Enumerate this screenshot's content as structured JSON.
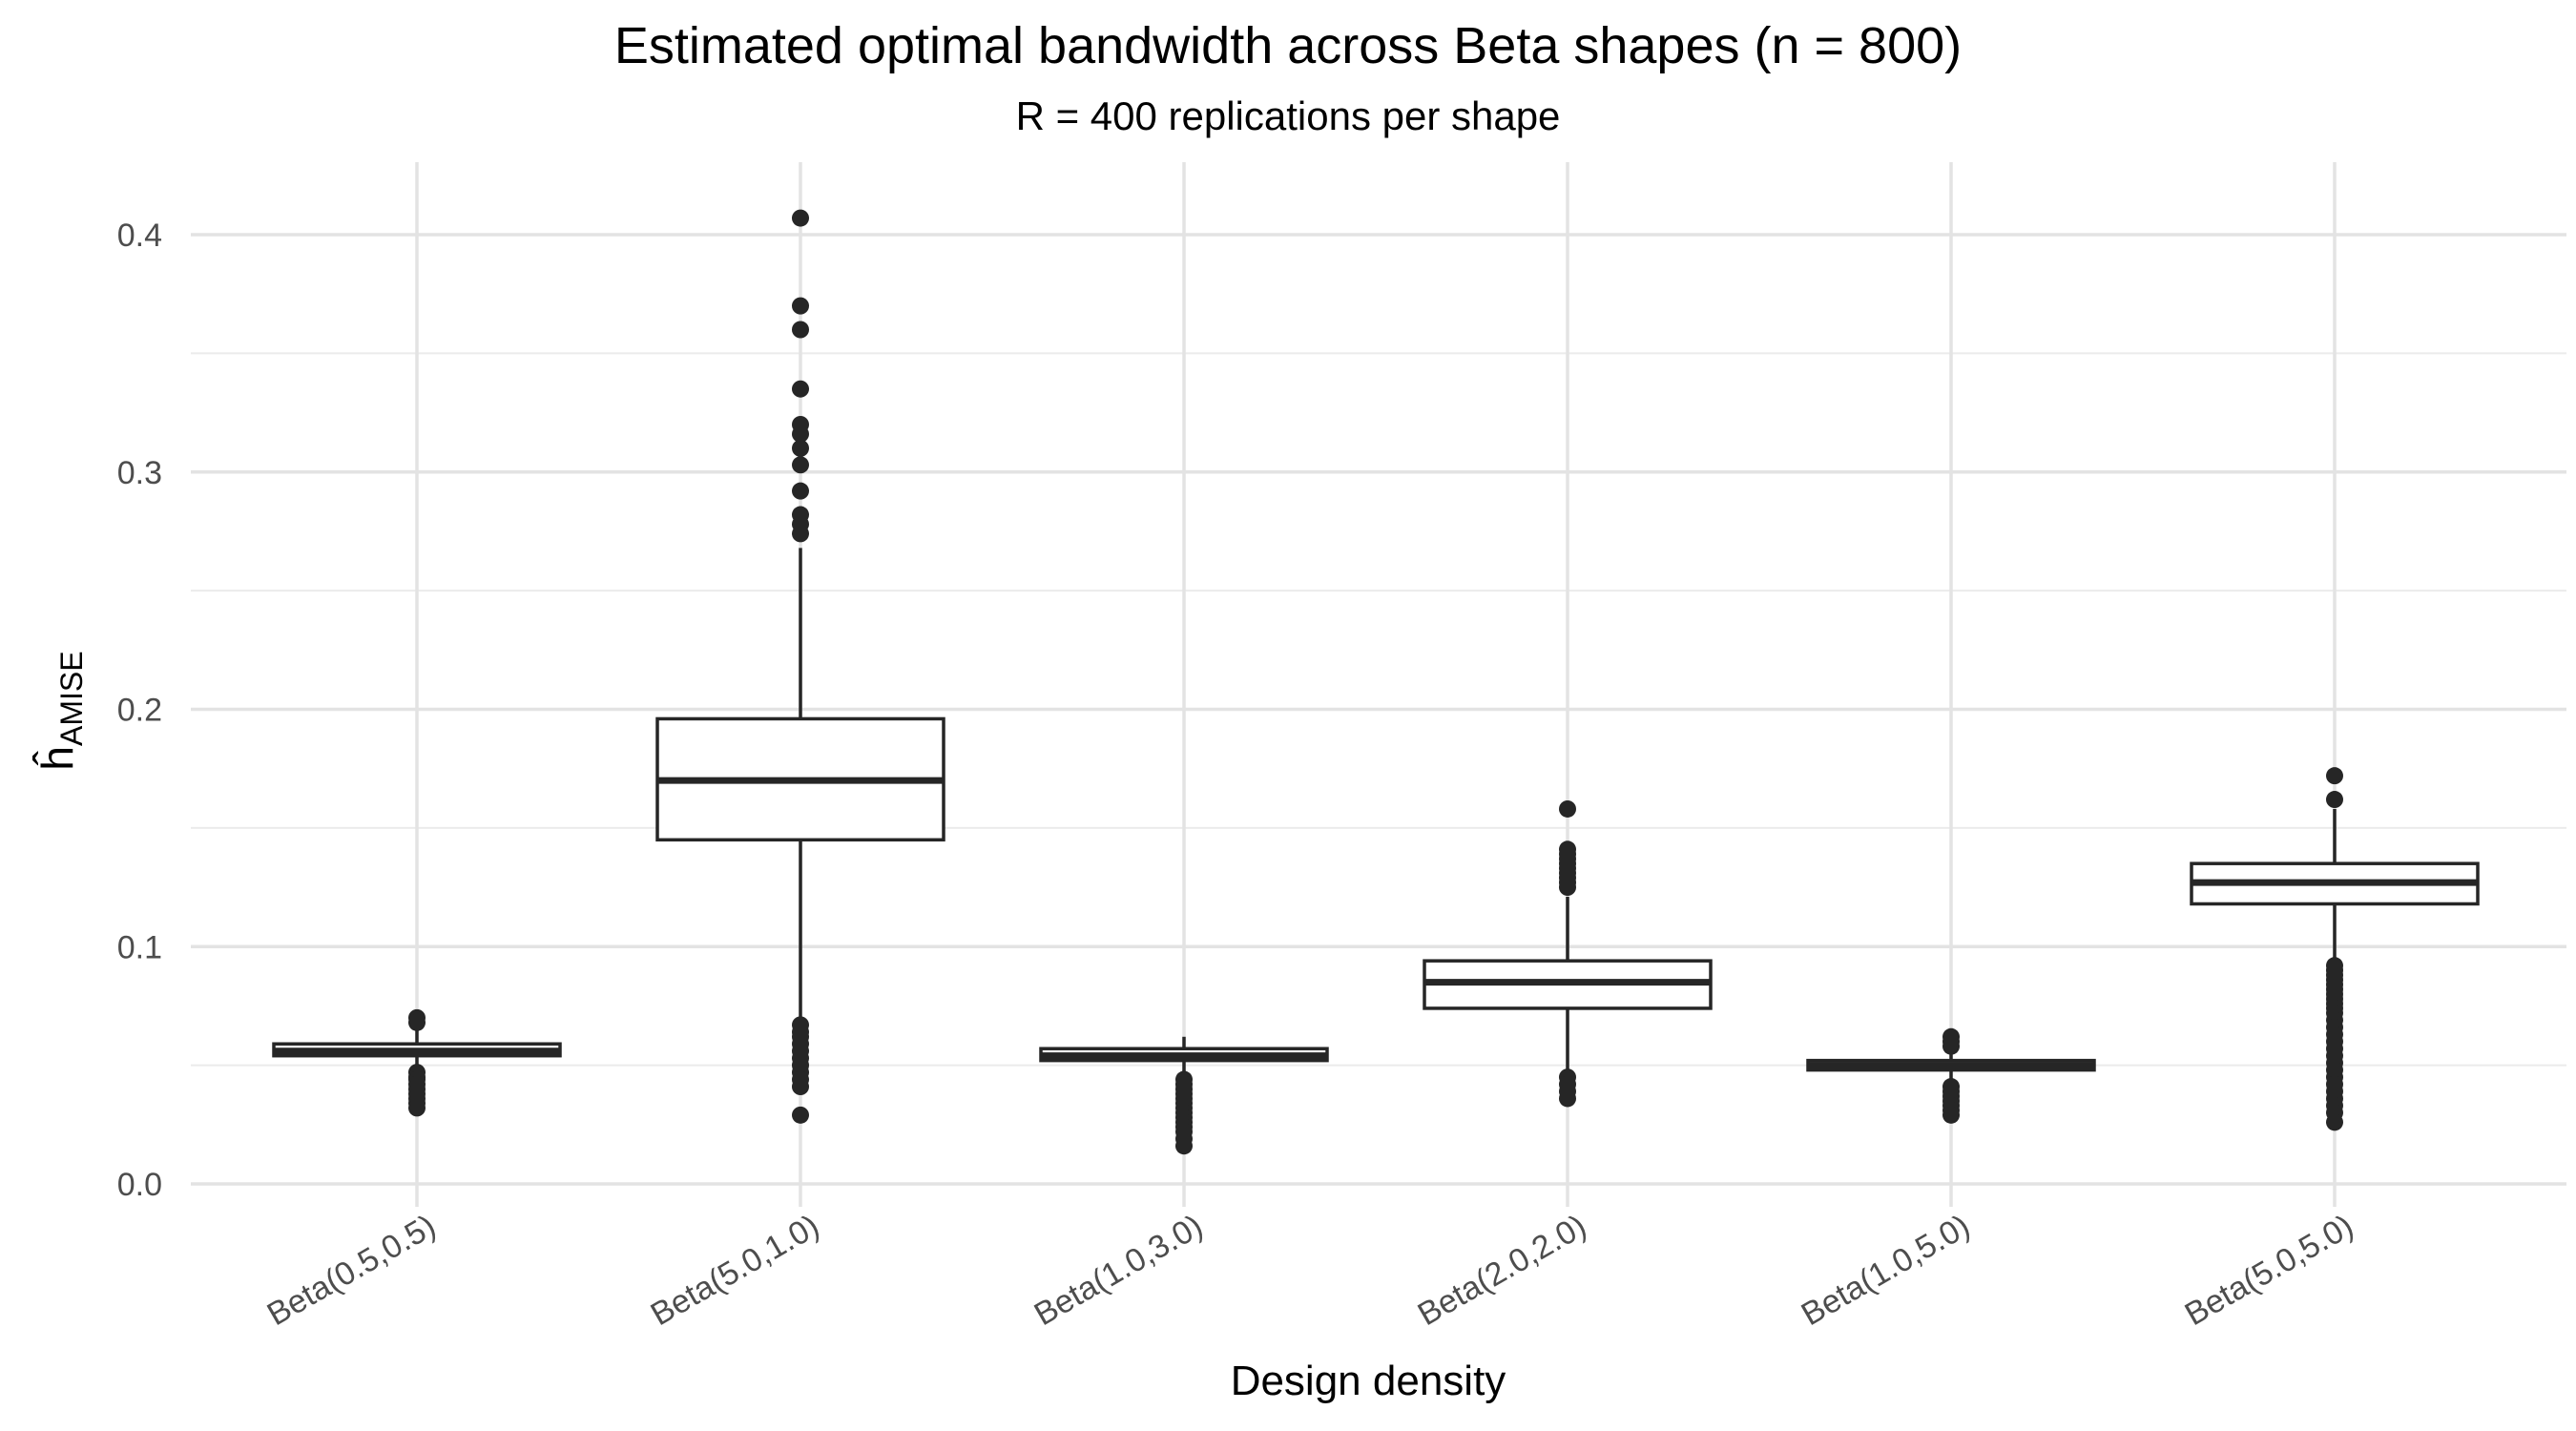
{
  "chart_data": {
    "type": "boxplot",
    "title": "Estimated optimal bandwidth across Beta shapes (n = 800)",
    "subtitle": "R = 400 replications per shape",
    "xlabel": "Design density",
    "ylabel_main": "ĥ",
    "ylabel_sub": "AMISE",
    "ylim": [
      -0.02,
      0.43
    ],
    "y_ticks": [
      0.0,
      0.1,
      0.2,
      0.3,
      0.4
    ],
    "y_tick_labels": [
      "0.0",
      "0.1",
      "0.2",
      "0.3",
      "0.4"
    ],
    "grid": true,
    "legend": "none",
    "box_color": "#262626",
    "categories": [
      "Beta(0.5,0.5)",
      "Beta(5.0,1.0)",
      "Beta(1.0,3.0)",
      "Beta(2.0,2.0)",
      "Beta(1.0,5.0)",
      "Beta(5.0,5.0)"
    ],
    "boxes": [
      {
        "category": "Beta(0.5,0.5)",
        "whisker_low": 0.048,
        "q1": 0.054,
        "median": 0.056,
        "q3": 0.059,
        "whisker_high": 0.066,
        "outliers": [
          0.07,
          0.068,
          0.047,
          0.045,
          0.044,
          0.042,
          0.04,
          0.038,
          0.036,
          0.034,
          0.032
        ]
      },
      {
        "category": "Beta(5.0,1.0)",
        "whisker_low": 0.07,
        "q1": 0.145,
        "median": 0.17,
        "q3": 0.196,
        "whisker_high": 0.268,
        "outliers": [
          0.407,
          0.37,
          0.36,
          0.335,
          0.32,
          0.316,
          0.31,
          0.303,
          0.292,
          0.282,
          0.278,
          0.274,
          0.067,
          0.064,
          0.062,
          0.059,
          0.056,
          0.053,
          0.05,
          0.047,
          0.044,
          0.041,
          0.029
        ]
      },
      {
        "category": "Beta(1.0,3.0)",
        "whisker_low": 0.046,
        "q1": 0.052,
        "median": 0.054,
        "q3": 0.057,
        "whisker_high": 0.062,
        "outliers": [
          0.044,
          0.042,
          0.04,
          0.038,
          0.036,
          0.034,
          0.032,
          0.03,
          0.028,
          0.026,
          0.024,
          0.022,
          0.019,
          0.016
        ]
      },
      {
        "category": "Beta(2.0,2.0)",
        "whisker_low": 0.047,
        "q1": 0.074,
        "median": 0.085,
        "q3": 0.094,
        "whisker_high": 0.121,
        "outliers": [
          0.158,
          0.141,
          0.139,
          0.137,
          0.135,
          0.133,
          0.131,
          0.129,
          0.127,
          0.125,
          0.045,
          0.042,
          0.039,
          0.036
        ]
      },
      {
        "category": "Beta(1.0,5.0)",
        "whisker_low": 0.043,
        "q1": 0.048,
        "median": 0.05,
        "q3": 0.052,
        "whisker_high": 0.056,
        "outliers": [
          0.062,
          0.06,
          0.058,
          0.041,
          0.039,
          0.037,
          0.035,
          0.033,
          0.031,
          0.029
        ]
      },
      {
        "category": "Beta(5.0,5.0)",
        "whisker_low": 0.094,
        "q1": 0.118,
        "median": 0.127,
        "q3": 0.135,
        "whisker_high": 0.158,
        "outliers": [
          0.172,
          0.162,
          0.092,
          0.09,
          0.088,
          0.086,
          0.084,
          0.082,
          0.08,
          0.078,
          0.076,
          0.074,
          0.072,
          0.069,
          0.066,
          0.063,
          0.06,
          0.057,
          0.054,
          0.051,
          0.048,
          0.045,
          0.042,
          0.039,
          0.036,
          0.033,
          0.03,
          0.026
        ]
      }
    ]
  }
}
